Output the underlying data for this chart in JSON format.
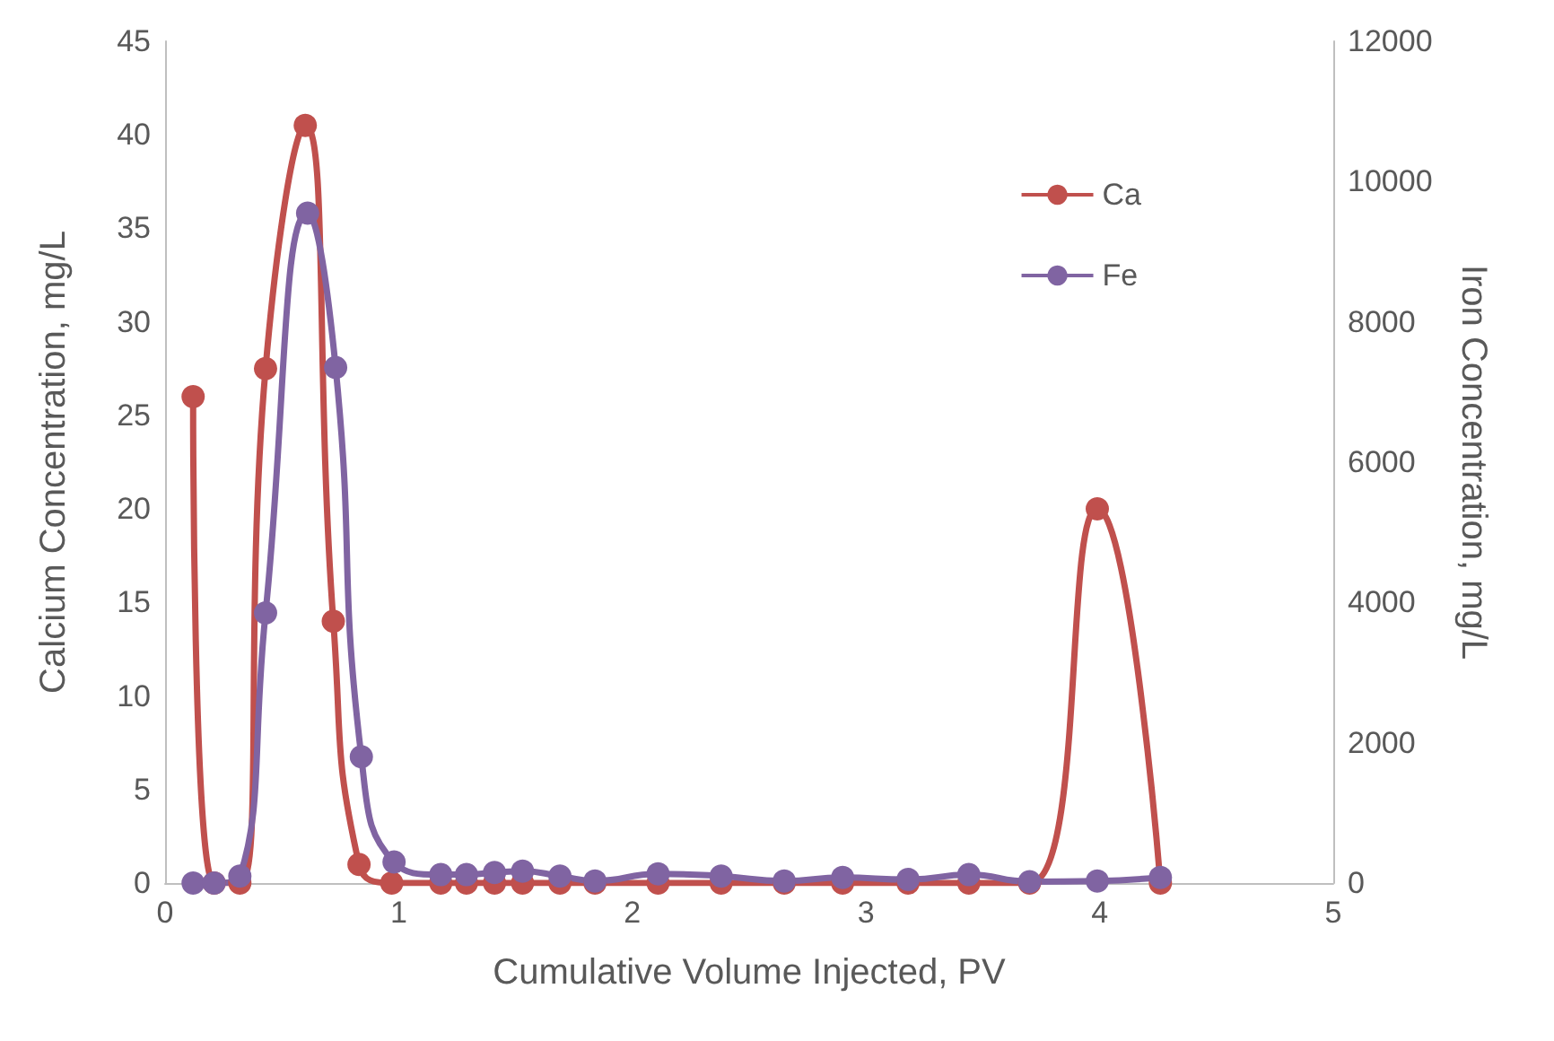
{
  "chart_data": {
    "type": "line",
    "xlabel": "Cumulative Volume Injected, PV",
    "ylabel": "Calcium Concentration, mg/L",
    "y2label": "Iron Concentration, mg/L",
    "xlim": [
      0,
      5
    ],
    "xticks": [
      0,
      1,
      2,
      3,
      4,
      5
    ],
    "ylim": [
      0,
      45
    ],
    "yticks": [
      0,
      5,
      10,
      15,
      20,
      25,
      30,
      35,
      40,
      45
    ],
    "y2lim": [
      0,
      12000
    ],
    "y2ticks": [
      0,
      2000,
      4000,
      6000,
      8000,
      10000,
      12000
    ],
    "grid": false,
    "legend": "top right",
    "marker": "circle",
    "line_style": "solid",
    "series": [
      {
        "name": "Ca",
        "color": "#c0504d",
        "x": [
          0.12,
          0.21,
          0.32,
          0.43,
          0.6,
          0.72,
          0.83,
          0.97,
          1.18,
          1.29,
          1.41,
          1.53,
          1.69,
          1.84,
          2.11,
          2.38,
          2.65,
          2.9,
          3.18,
          3.44,
          3.7,
          3.99,
          4.26
        ],
        "values": [
          26,
          0,
          0,
          27.5,
          40.5,
          14,
          1,
          0,
          0,
          0,
          0,
          0,
          0,
          0,
          0,
          0,
          0,
          0,
          0,
          0,
          0,
          20,
          0
        ]
      },
      {
        "name": "Fe",
        "color": "#8064a2",
        "axis": "y2",
        "x": [
          0.12,
          0.21,
          0.32,
          0.43,
          0.61,
          0.73,
          0.84,
          0.98,
          1.18,
          1.29,
          1.41,
          1.53,
          1.69,
          1.84,
          2.11,
          2.38,
          2.65,
          2.9,
          3.18,
          3.44,
          3.7,
          3.99,
          4.26
        ],
        "values": [
          0,
          0,
          100,
          3850,
          9550,
          7350,
          1800,
          300,
          120,
          120,
          150,
          170,
          100,
          30,
          130,
          100,
          30,
          80,
          50,
          120,
          20,
          30,
          80
        ]
      }
    ]
  }
}
